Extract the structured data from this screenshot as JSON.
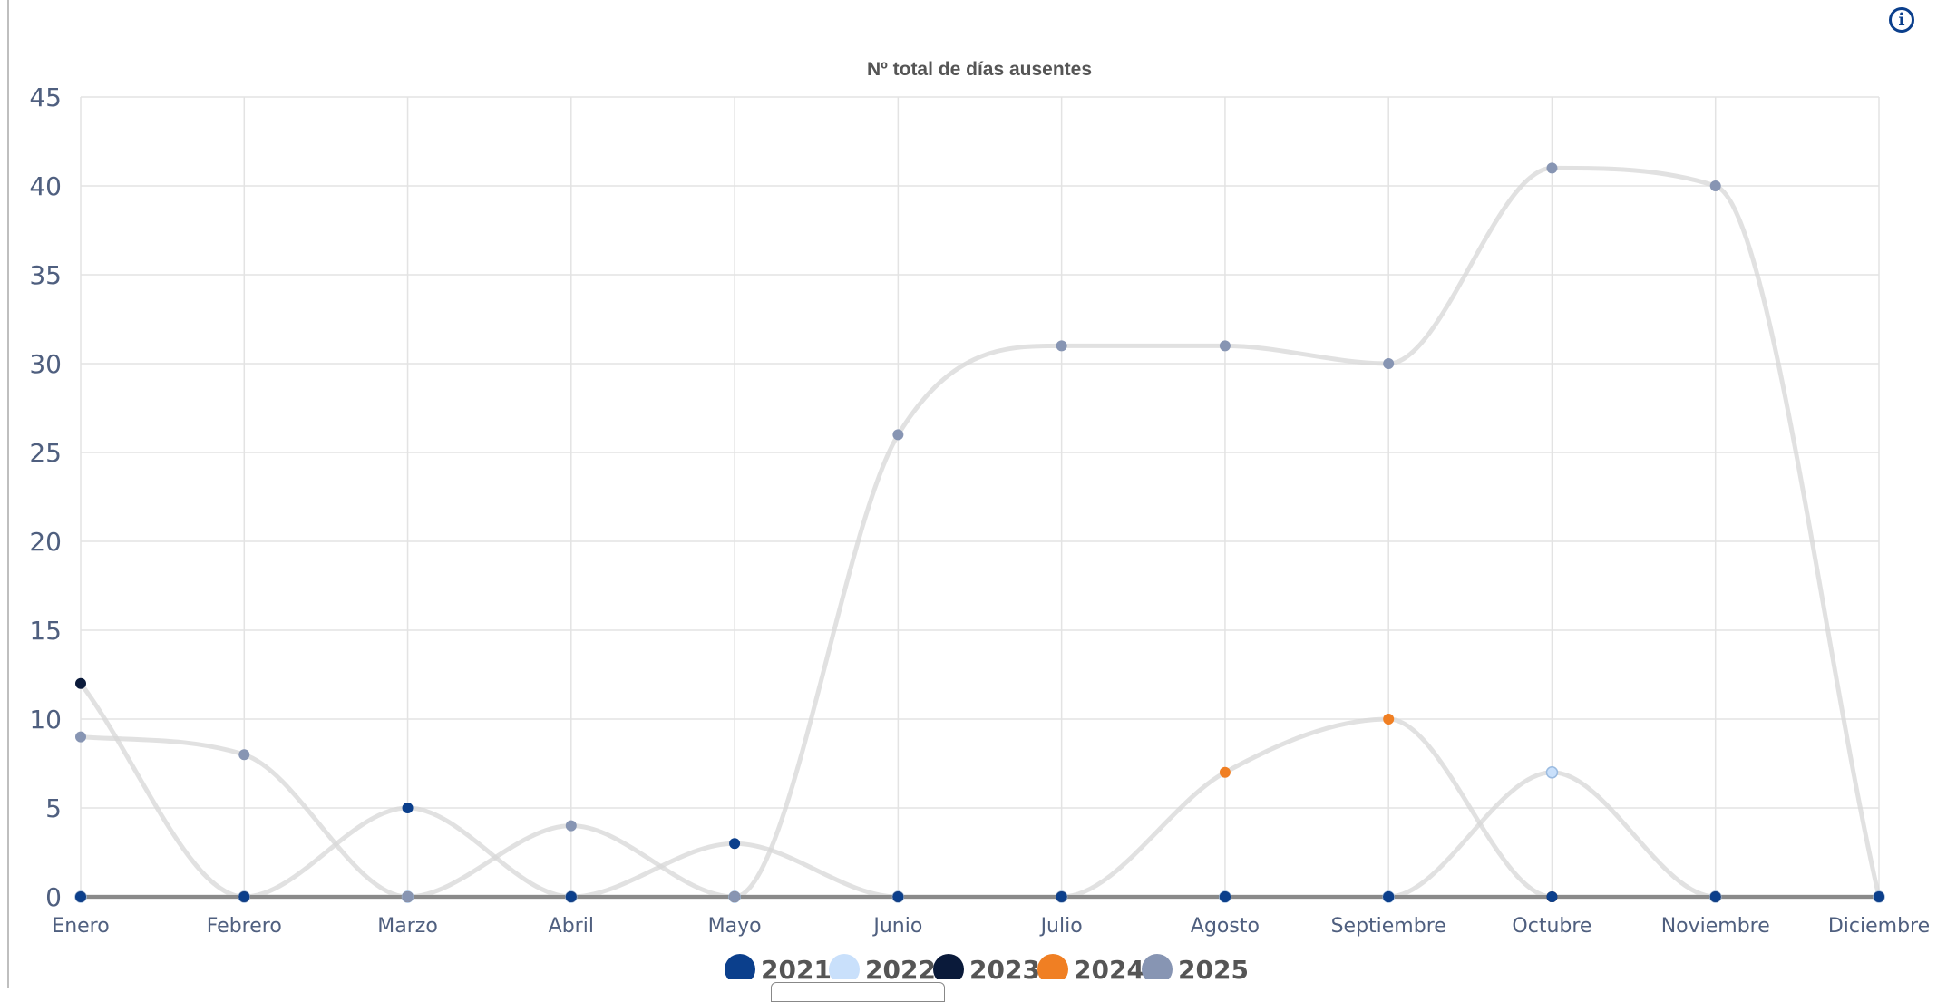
{
  "info_icon": "info-circle-icon",
  "chart_data": {
    "type": "line",
    "title": "Nº total de días ausentes",
    "xlabel": "",
    "ylabel": "",
    "ylim": [
      0,
      45
    ],
    "yticks": [
      0,
      5,
      10,
      15,
      20,
      25,
      30,
      35,
      40,
      45
    ],
    "grid": true,
    "legend_position": "bottom",
    "categories": [
      "Enero",
      "Febrero",
      "Marzo",
      "Abril",
      "Mayo",
      "Junio",
      "Julio",
      "Agosto",
      "Septiembre",
      "Octubre",
      "Noviembre",
      "Diciembre"
    ],
    "series": [
      {
        "name": "2021",
        "color": "#0b3f8c",
        "values": [
          0,
          0,
          5,
          0,
          3,
          0,
          0,
          0,
          0,
          0,
          0,
          0
        ]
      },
      {
        "name": "2022",
        "color": "#c9e0fb",
        "values": [
          0,
          0,
          0,
          0,
          0,
          0,
          0,
          0,
          0,
          7,
          0,
          0
        ]
      },
      {
        "name": "2023",
        "color": "#0a1a3a",
        "values": [
          12,
          0,
          0,
          0,
          0,
          0,
          0,
          0,
          0,
          0,
          0,
          0
        ]
      },
      {
        "name": "2024",
        "color": "#f07f23",
        "values": [
          0,
          0,
          0,
          0,
          0,
          0,
          0,
          7,
          10,
          0,
          0,
          0
        ]
      },
      {
        "name": "2025",
        "color": "#8795b3",
        "values": [
          9,
          8,
          0,
          4,
          0,
          26,
          31,
          31,
          30,
          41,
          40,
          0
        ]
      }
    ]
  }
}
